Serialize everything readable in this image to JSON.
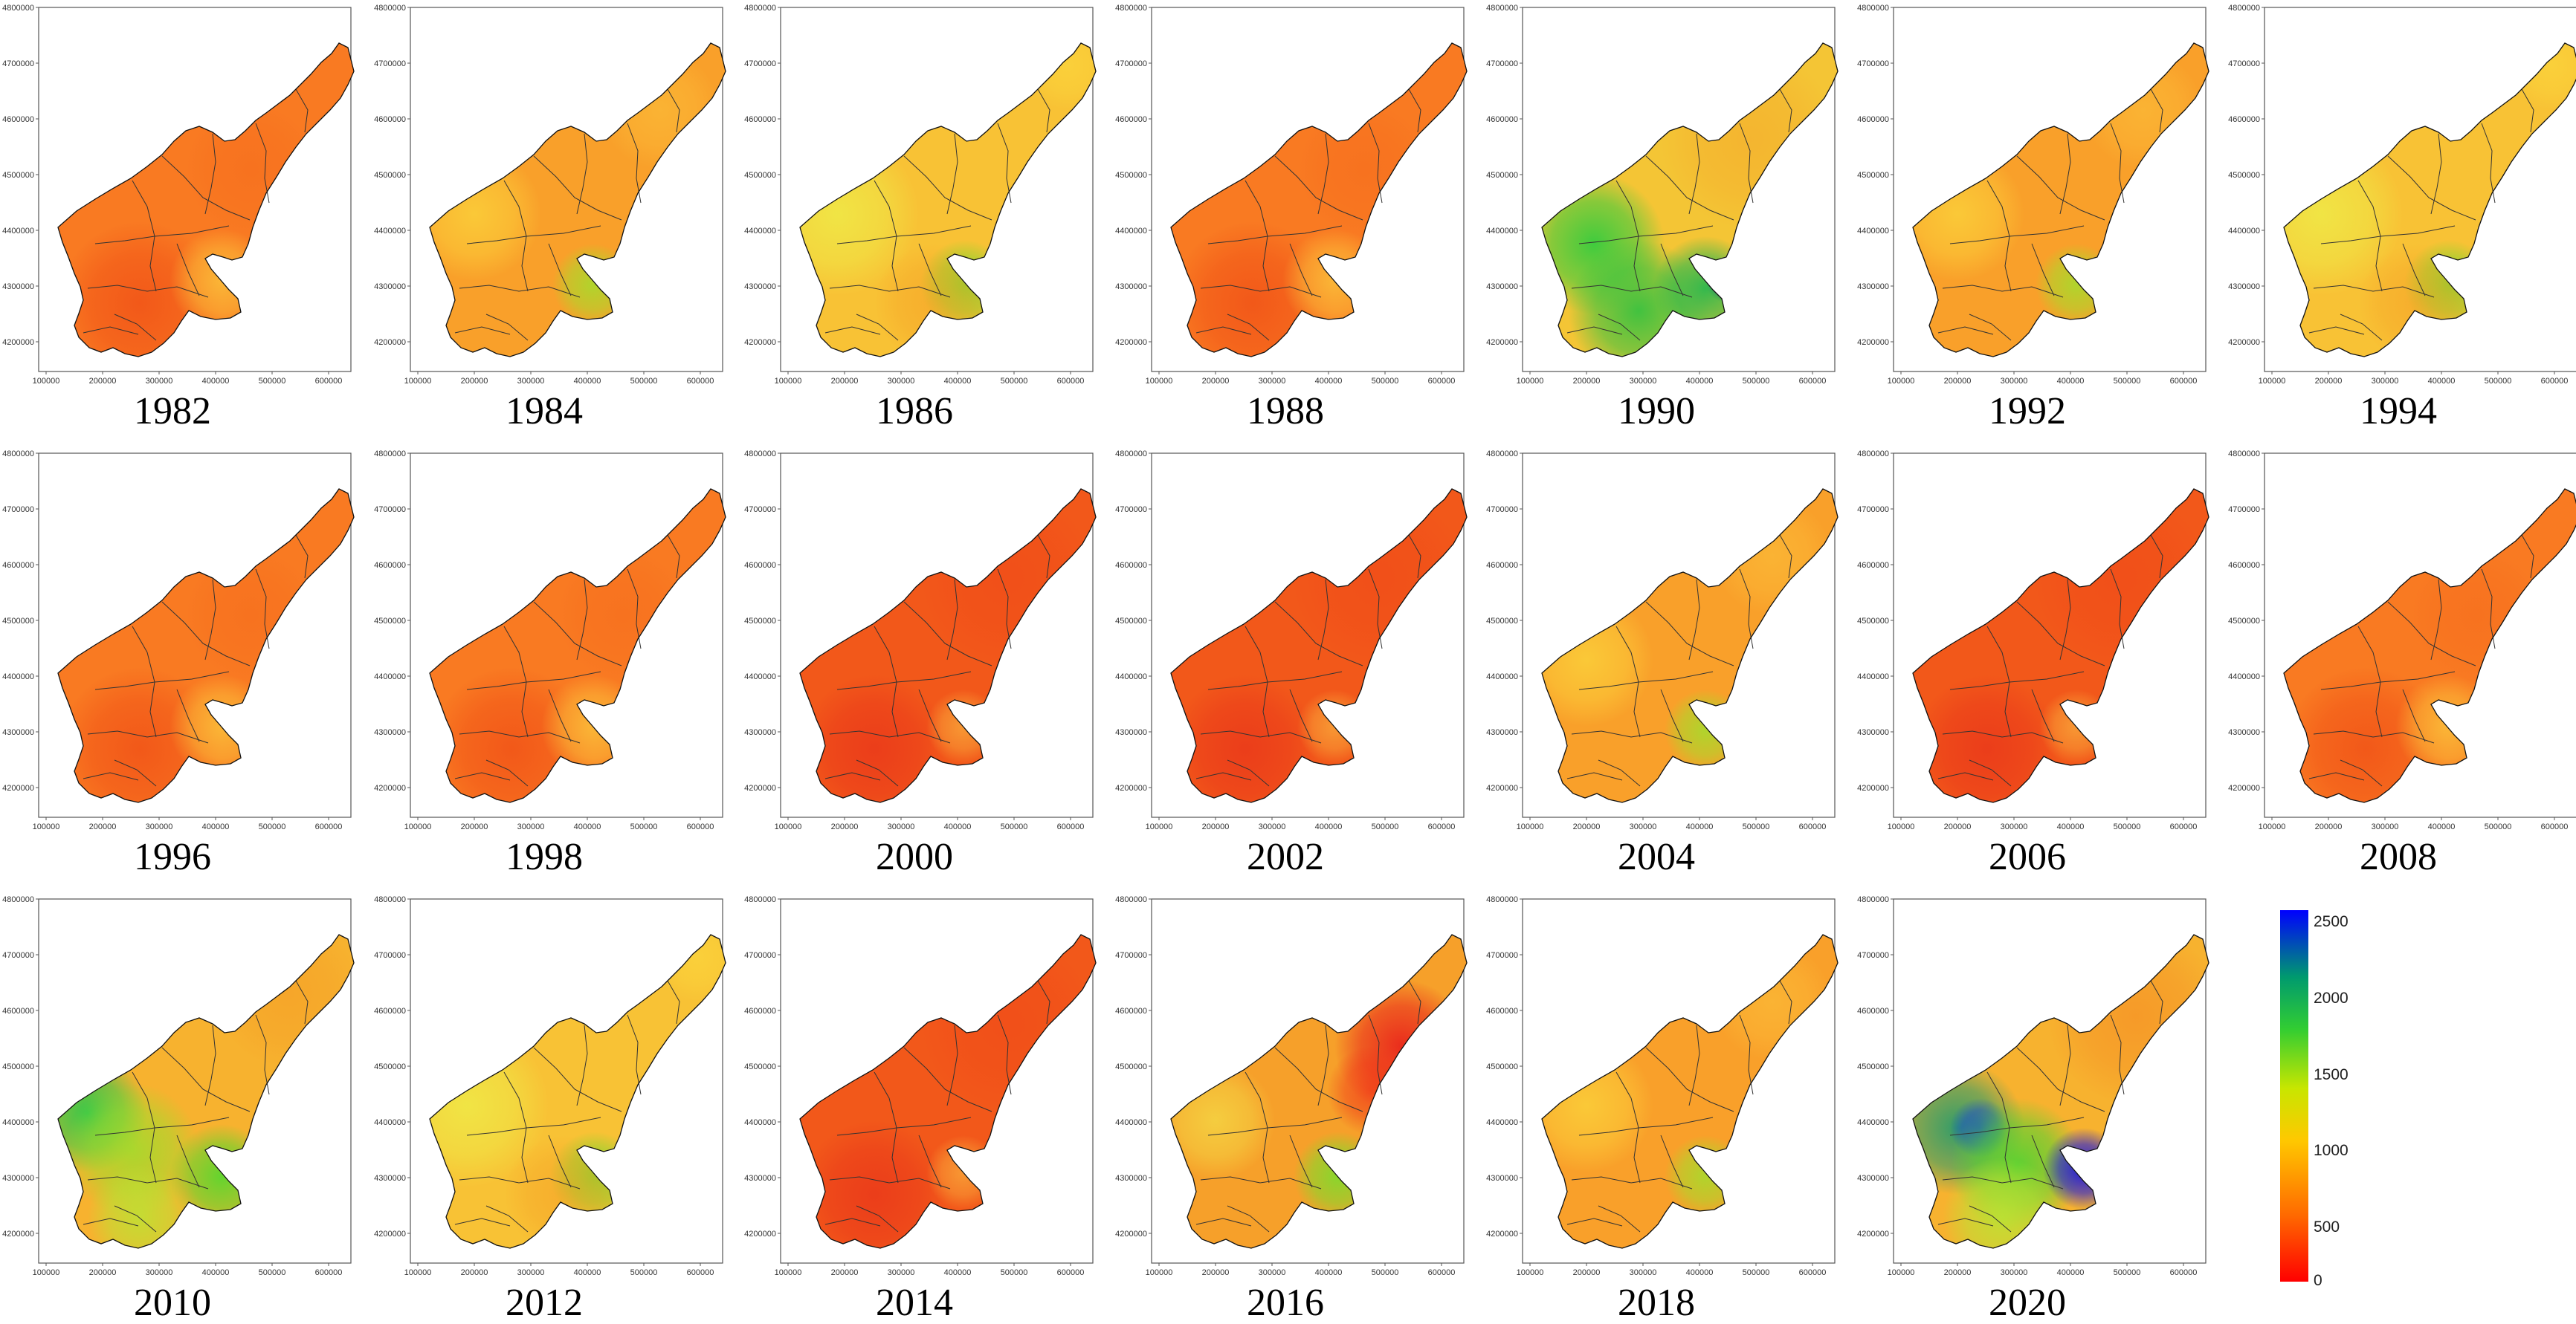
{
  "figure": {
    "panels": [
      {
        "year": "1982",
        "scheme": "orange"
      },
      {
        "year": "1984",
        "scheme": "orange-light"
      },
      {
        "year": "1986",
        "scheme": "yellow"
      },
      {
        "year": "1988",
        "scheme": "orange"
      },
      {
        "year": "1990",
        "scheme": "green-south"
      },
      {
        "year": "1992",
        "scheme": "orange-light"
      },
      {
        "year": "1994",
        "scheme": "yellow"
      },
      {
        "year": "1996",
        "scheme": "orange"
      },
      {
        "year": "1998",
        "scheme": "orange"
      },
      {
        "year": "2000",
        "scheme": "red"
      },
      {
        "year": "2002",
        "scheme": "red"
      },
      {
        "year": "2004",
        "scheme": "orange-light"
      },
      {
        "year": "2006",
        "scheme": "red"
      },
      {
        "year": "2008",
        "scheme": "orange"
      },
      {
        "year": "2010",
        "scheme": "green-west"
      },
      {
        "year": "2012",
        "scheme": "yellow"
      },
      {
        "year": "2014",
        "scheme": "red"
      },
      {
        "year": "2016",
        "scheme": "mixed"
      },
      {
        "year": "2018",
        "scheme": "orange-light"
      },
      {
        "year": "2020",
        "scheme": "blue-south"
      }
    ],
    "x_ticks": [
      "100000",
      "200000",
      "300000",
      "400000",
      "500000",
      "600000"
    ],
    "y_ticks": [
      "4800000",
      "4700000",
      "4600000",
      "4500000",
      "4400000",
      "4300000",
      "4200000"
    ]
  },
  "legend": {
    "ticks": [
      "2500",
      "2000",
      "1500",
      "1000",
      "500",
      "0"
    ],
    "colors": [
      "#ff0000",
      "#ff6a00",
      "#ffc800",
      "#c8e600",
      "#32cd32",
      "#009a6e",
      "#0000ff"
    ]
  }
}
